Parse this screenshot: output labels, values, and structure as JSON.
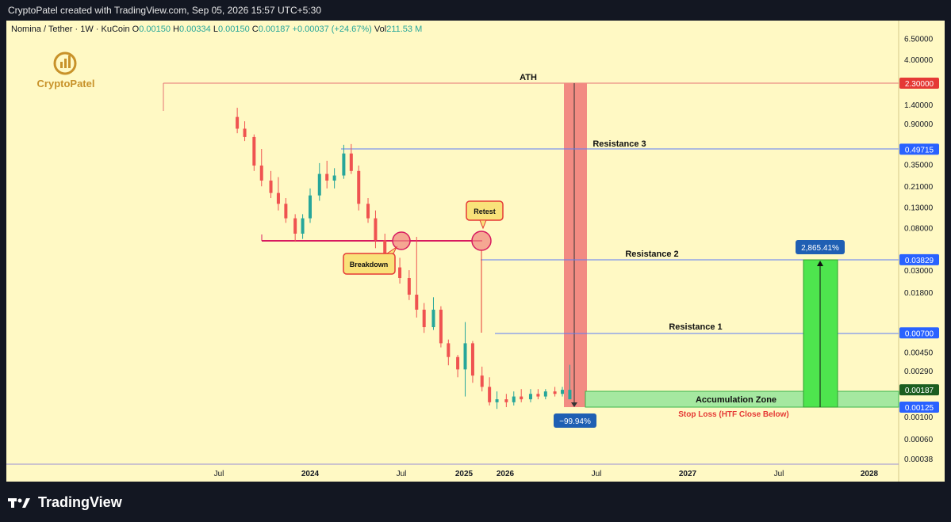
{
  "header": {
    "text": "CryptoPatel created with TradingView.com, Sep 05, 2026 15:57 UTC+5:30"
  },
  "legend": {
    "symbol": "Nomina / Tether · 1W · KuCoin",
    "o_label": "O",
    "o_value": "0.00150",
    "h_label": "H",
    "h_value": "0.00334",
    "l_label": "L",
    "l_value": "0.00150",
    "c_label": "C",
    "c_value": "0.00187",
    "change": "+0.00037 (+24.67%)",
    "vol_label": "Vol",
    "vol_value": "211.53 M"
  },
  "watermark": {
    "text": "CryptoPatel"
  },
  "brand": {
    "text": "TradingView"
  },
  "colors": {
    "up": "#26a69a",
    "down": "#ef5350",
    "level": "#5b7cf7",
    "ath": "#e53935",
    "zone_fill": "#a5e8a0",
    "target_fill": "#4ee54e",
    "callout": "#f9e27a",
    "callout_border": "#e53935"
  },
  "annotations": {
    "ath": "ATH",
    "resistance3": "Resistance 3",
    "resistance2": "Resistance 2",
    "resistance1": "Resistance 1",
    "accumulation": "Accumulation Zone",
    "stop_loss": "Stop Loss (HTF Close Below)",
    "breakdown": "Breakdown",
    "retest": "Retest",
    "gain": "2,865.41%",
    "drop": "−99.94%"
  },
  "chart_data": {
    "type": "candlestick",
    "scale": "log",
    "y_ticks": [
      "6.50000",
      "4.00000",
      "1.40000",
      "0.90000",
      "0.35000",
      "0.21000",
      "0.13000",
      "0.08000",
      "0.03000",
      "0.01800",
      "0.00450",
      "0.00290",
      "0.00100",
      "0.00060",
      "0.00038"
    ],
    "x_ticks": [
      "Jul",
      "2024",
      "Jul",
      "2025",
      "2026",
      "Jul",
      "2027",
      "Jul",
      "2028"
    ],
    "price_tags": [
      {
        "label": "2.30000",
        "style": "ath"
      },
      {
        "label": "0.49715",
        "style": "level"
      },
      {
        "label": "0.03829",
        "style": "level"
      },
      {
        "label": "0.00700",
        "style": "level"
      },
      {
        "label": "0.00187",
        "style": "last"
      },
      {
        "label": "0.00125",
        "style": "level"
      }
    ],
    "levels": {
      "ath": 2.3,
      "resistance3": 0.49715,
      "resistance2": 0.03829,
      "resistance1": 0.007,
      "support": 0.00125,
      "breakdown": 0.065
    },
    "series": [
      {
        "x": "2023-04-03",
        "o": 1.05,
        "h": 1.3,
        "l": 0.72,
        "c": 0.8
      },
      {
        "x": "2023-05-01",
        "o": 0.8,
        "h": 0.95,
        "l": 0.6,
        "c": 0.66
      },
      {
        "x": "2023-06-05",
        "o": 0.66,
        "h": 0.7,
        "l": 0.3,
        "c": 0.34
      },
      {
        "x": "2023-07-03",
        "o": 0.34,
        "h": 0.5,
        "l": 0.21,
        "c": 0.24
      },
      {
        "x": "2023-08-07",
        "o": 0.24,
        "h": 0.3,
        "l": 0.16,
        "c": 0.18
      },
      {
        "x": "2023-09-04",
        "o": 0.18,
        "h": 0.26,
        "l": 0.12,
        "c": 0.14
      },
      {
        "x": "2023-10-02",
        "o": 0.14,
        "h": 0.16,
        "l": 0.09,
        "c": 0.1
      },
      {
        "x": "2023-11-06",
        "o": 0.1,
        "h": 0.11,
        "l": 0.058,
        "c": 0.07
      },
      {
        "x": "2023-12-04",
        "o": 0.07,
        "h": 0.11,
        "l": 0.062,
        "c": 0.1
      },
      {
        "x": "2024-01-01",
        "o": 0.1,
        "h": 0.2,
        "l": 0.09,
        "c": 0.17
      },
      {
        "x": "2024-02-05",
        "o": 0.17,
        "h": 0.36,
        "l": 0.15,
        "c": 0.28
      },
      {
        "x": "2024-03-04",
        "o": 0.28,
        "h": 0.38,
        "l": 0.2,
        "c": 0.24
      },
      {
        "x": "2024-04-01",
        "o": 0.24,
        "h": 0.32,
        "l": 0.2,
        "c": 0.27
      },
      {
        "x": "2024-05-06",
        "o": 0.27,
        "h": 0.55,
        "l": 0.25,
        "c": 0.45
      },
      {
        "x": "2024-06-03",
        "o": 0.45,
        "h": 0.56,
        "l": 0.28,
        "c": 0.3
      },
      {
        "x": "2024-07-01",
        "o": 0.3,
        "h": 0.34,
        "l": 0.12,
        "c": 0.14
      },
      {
        "x": "2024-08-05",
        "o": 0.14,
        "h": 0.16,
        "l": 0.09,
        "c": 0.1
      },
      {
        "x": "2024-09-02",
        "o": 0.1,
        "h": 0.12,
        "l": 0.05,
        "c": 0.06
      },
      {
        "x": "2024-10-07",
        "o": 0.06,
        "h": 0.07,
        "l": 0.03,
        "c": 0.034
      },
      {
        "x": "2024-11-04",
        "o": 0.034,
        "h": 0.04,
        "l": 0.028,
        "c": 0.032
      },
      {
        "x": "2024-12-02",
        "o": 0.032,
        "h": 0.04,
        "l": 0.022,
        "c": 0.025
      },
      {
        "x": "2025-01-06",
        "o": 0.025,
        "h": 0.03,
        "l": 0.015,
        "c": 0.017
      },
      {
        "x": "2025-02-03",
        "o": 0.017,
        "h": 0.065,
        "l": 0.01,
        "c": 0.012
      },
      {
        "x": "2025-03-03",
        "o": 0.012,
        "h": 0.014,
        "l": 0.007,
        "c": 0.008
      },
      {
        "x": "2025-04-07",
        "o": 0.008,
        "h": 0.016,
        "l": 0.0075,
        "c": 0.012
      },
      {
        "x": "2025-05-05",
        "o": 0.012,
        "h": 0.013,
        "l": 0.005,
        "c": 0.0055
      },
      {
        "x": "2025-06-02",
        "o": 0.0055,
        "h": 0.006,
        "l": 0.0033,
        "c": 0.004
      },
      {
        "x": "2025-07-07",
        "o": 0.004,
        "h": 0.0042,
        "l": 0.0025,
        "c": 0.003
      },
      {
        "x": "2025-08-04",
        "o": 0.003,
        "h": 0.009,
        "l": 0.0016,
        "c": 0.0055
      },
      {
        "x": "2025-09-01",
        "o": 0.0055,
        "h": 0.0058,
        "l": 0.0022,
        "c": 0.0026
      },
      {
        "x": "2025-10-06",
        "o": 0.0026,
        "h": 0.0032,
        "l": 0.0018,
        "c": 0.002
      },
      {
        "x": "2025-11-03",
        "o": 0.002,
        "h": 0.0025,
        "l": 0.0013,
        "c": 0.0014
      },
      {
        "x": "2025-12-01",
        "o": 0.0014,
        "h": 0.0018,
        "l": 0.0012,
        "c": 0.0015
      },
      {
        "x": "2026-01-05",
        "o": 0.0015,
        "h": 0.0017,
        "l": 0.00125,
        "c": 0.0014
      },
      {
        "x": "2026-02-02",
        "o": 0.0014,
        "h": 0.0018,
        "l": 0.0013,
        "c": 0.0016
      },
      {
        "x": "2026-03-02",
        "o": 0.0016,
        "h": 0.0019,
        "l": 0.0014,
        "c": 0.0015
      },
      {
        "x": "2026-04-06",
        "o": 0.0015,
        "h": 0.0019,
        "l": 0.0014,
        "c": 0.0017
      },
      {
        "x": "2026-05-04",
        "o": 0.0017,
        "h": 0.0019,
        "l": 0.0015,
        "c": 0.0016
      },
      {
        "x": "2026-06-01",
        "o": 0.0016,
        "h": 0.0019,
        "l": 0.0015,
        "c": 0.0018
      },
      {
        "x": "2026-07-06",
        "o": 0.0018,
        "h": 0.002,
        "l": 0.0016,
        "c": 0.0017
      },
      {
        "x": "2026-08-03",
        "o": 0.0017,
        "h": 0.002,
        "l": 0.0016,
        "c": 0.00187
      },
      {
        "x": "2026-08-31",
        "o": 0.0015,
        "h": 0.00334,
        "l": 0.0015,
        "c": 0.00187
      }
    ]
  }
}
